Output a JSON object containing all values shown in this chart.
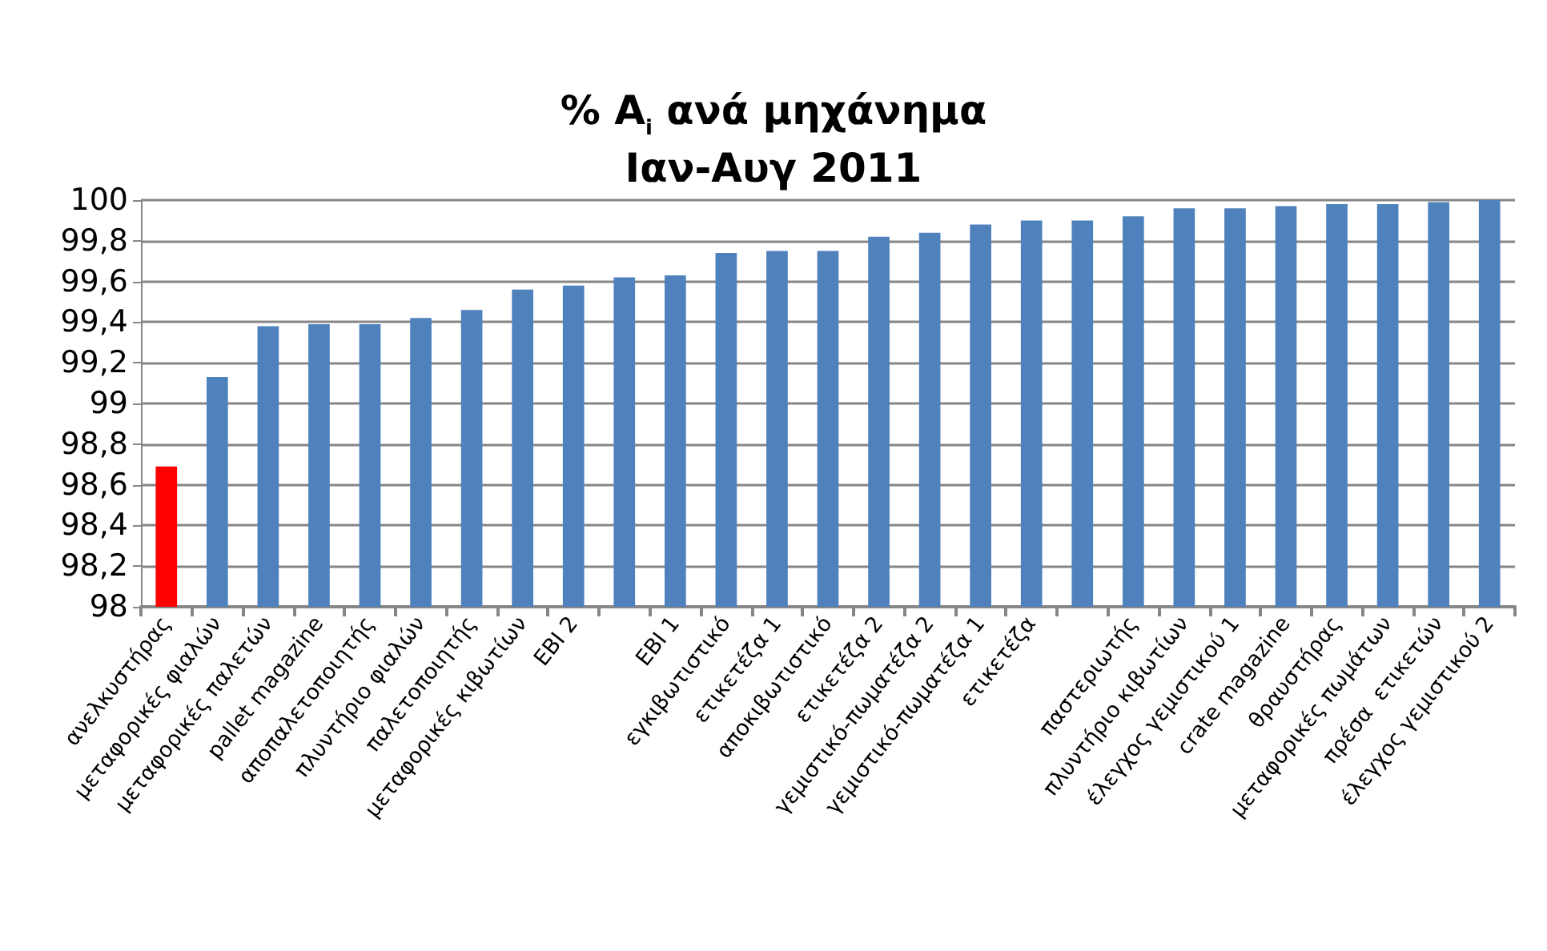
{
  "chart_data": {
    "type": "bar",
    "title": "% A$_{i}$ ανά μηχάνημα\nΙαν-Αυγ 2011",
    "categories": [
      "ανελκυστήρας",
      "μεταφορικές φιαλών",
      "μεταφορικές παλετών",
      "pallet magazine",
      "αποπαλετοποιητής",
      "πλυντήριο φιαλών",
      "παλετοποιητής",
      "μεταφορικές κιβωτίων",
      "EBI 2",
      null,
      "EBI 1",
      "εγκιβωτιστικό",
      "ετικετέζα 1",
      "αποκιβωτιστικό",
      "ετικετέζα 2",
      "γεμιστικό-πωματέζα 2",
      "γεμιστικό-πωματέζα 1",
      "ετικετέζα",
      null,
      "παστεριωτής",
      "πλυντήριο κιβωτίων",
      "έλεγχος γεμιστικού 1",
      "crate magazine",
      "θραυστήρας",
      "μεταφορικές πωμάτων",
      "πρέσα  ετικετών",
      "έλεγχος γεμιστικού 2"
    ],
    "values": [
      98.69,
      99.13,
      99.38,
      99.39,
      99.39,
      99.42,
      99.46,
      99.56,
      99.58,
      99.62,
      99.63,
      99.74,
      99.75,
      99.75,
      99.82,
      99.84,
      99.88,
      99.9,
      99.9,
      99.92,
      99.96,
      99.96,
      99.97,
      99.98,
      99.98,
      99.99,
      100
    ],
    "colors": [
      "#ff0000",
      "#4f81bd",
      "#4f81bd",
      "#4f81bd",
      "#4f81bd",
      "#4f81bd",
      "#4f81bd",
      "#4f81bd",
      "#4f81bd",
      "#4f81bd",
      "#4f81bd",
      "#4f81bd",
      "#4f81bd",
      "#4f81bd",
      "#4f81bd",
      "#4f81bd",
      "#4f81bd",
      "#4f81bd",
      "#4f81bd",
      "#4f81bd",
      "#4f81bd",
      "#4f81bd",
      "#4f81bd",
      "#4f81bd",
      "#4f81bd",
      "#4f81bd",
      "#4f81bd"
    ],
    "ylim": [
      98,
      100
    ],
    "yticks": [
      98,
      {
        "value": 98.2,
        "label": "98,2"
      },
      {
        "value": 98.4,
        "label": "98,4"
      },
      {
        "value": 98.6,
        "label": "98,6"
      },
      {
        "value": 98.8,
        "label": "98,8"
      },
      99,
      {
        "value": 99.2,
        "label": "99,2"
      },
      {
        "value": 99.4,
        "label": "99,4"
      },
      {
        "value": 99.6,
        "label": "99,6"
      },
      {
        "value": 99.8,
        "label": "99,8"
      },
      100
    ],
    "grid": "y"
  }
}
